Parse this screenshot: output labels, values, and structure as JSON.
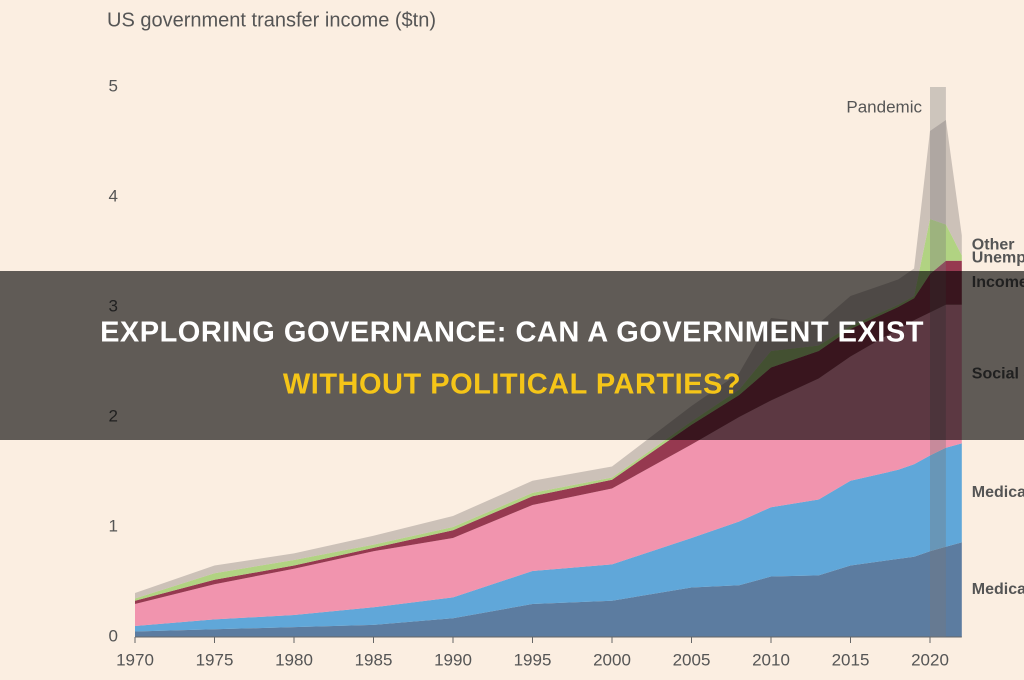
{
  "chart_data": {
    "type": "area",
    "stacked": true,
    "title": "US government transfer income ($tn)",
    "x": [
      1970,
      1975,
      1980,
      1985,
      1990,
      1995,
      2000,
      2005,
      2008,
      2010,
      2013,
      2015,
      2018,
      2019,
      2020,
      2021,
      2022
    ],
    "series": [
      {
        "name": "Medicaid",
        "color": "#4a6f99",
        "values": [
          0.05,
          0.07,
          0.09,
          0.11,
          0.17,
          0.3,
          0.33,
          0.45,
          0.47,
          0.55,
          0.56,
          0.65,
          0.71,
          0.73,
          0.78,
          0.82,
          0.86
        ]
      },
      {
        "name": "Medicare",
        "color": "#4f9fd8",
        "values": [
          0.05,
          0.09,
          0.11,
          0.16,
          0.19,
          0.3,
          0.33,
          0.45,
          0.58,
          0.63,
          0.69,
          0.77,
          0.81,
          0.84,
          0.87,
          0.9,
          0.9
        ]
      },
      {
        "name": "Social Security",
        "color": "#f08aa8",
        "values": [
          0.2,
          0.32,
          0.42,
          0.51,
          0.54,
          0.6,
          0.69,
          0.85,
          0.95,
          0.97,
          1.1,
          1.13,
          1.28,
          1.31,
          1.3,
          1.3,
          1.26
        ]
      },
      {
        "name": "Income maintenance",
        "color": "#8b2540",
        "values": [
          0.03,
          0.04,
          0.03,
          0.03,
          0.07,
          0.08,
          0.08,
          0.18,
          0.2,
          0.3,
          0.25,
          0.25,
          0.2,
          0.2,
          0.35,
          0.4,
          0.4
        ]
      },
      {
        "name": "Unemployment insurance",
        "color": "#a9cf78",
        "values": [
          0.02,
          0.06,
          0.05,
          0.03,
          0.03,
          0.03,
          0.02,
          0.03,
          0.05,
          0.15,
          0.05,
          0.03,
          0.02,
          0.02,
          0.5,
          0.33,
          0.05
        ]
      },
      {
        "name": "Other",
        "color": "#c7bbb4",
        "values": [
          0.05,
          0.07,
          0.06,
          0.08,
          0.1,
          0.11,
          0.1,
          0.14,
          0.15,
          0.3,
          0.2,
          0.27,
          0.23,
          0.25,
          0.8,
          0.95,
          0.18
        ]
      }
    ],
    "xlim": [
      1970,
      2022
    ],
    "xticks": [
      1970,
      1975,
      1980,
      1985,
      1990,
      1995,
      2000,
      2005,
      2010,
      2015,
      2020
    ],
    "ylim": [
      0,
      5
    ],
    "yticks": [
      0,
      1,
      2,
      3,
      4,
      5
    ],
    "grid": false,
    "pandemic": {
      "label": "Pandemic",
      "xrange": [
        2020,
        2021
      ]
    }
  },
  "banner": {
    "line1": "EXPLORING GOVERNANCE: CAN A GOVERNMENT EXIST",
    "line2": "WITHOUT POLITICAL PARTIES?"
  }
}
